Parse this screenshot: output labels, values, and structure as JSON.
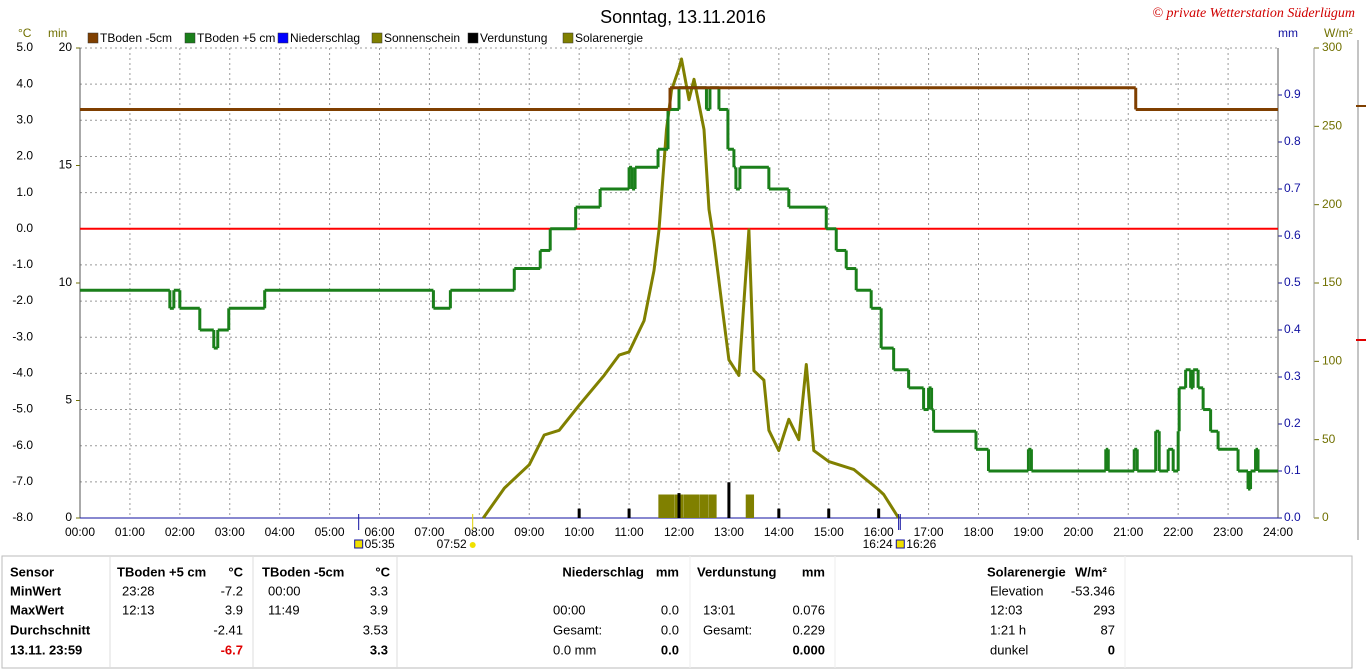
{
  "chart_data": {
    "type": "line",
    "title": "Sonntag, 13.11.2016",
    "credit": "© private Wetterstation Süderlügum",
    "units": {
      "y": "°C",
      "y2": "min",
      "y3": "mm",
      "y4": "W/m²"
    },
    "xlim": [
      0,
      24
    ],
    "xticks": [
      {
        "value": 0,
        "label": "00:00"
      },
      {
        "value": 1,
        "label": "01:00"
      },
      {
        "value": 2,
        "label": "02:00"
      },
      {
        "value": 3,
        "label": "03:00"
      },
      {
        "value": 4,
        "label": "04:00"
      },
      {
        "value": 5,
        "label": "05:00"
      },
      {
        "value": 6,
        "label": "06:00"
      },
      {
        "value": 7,
        "label": "07:00"
      },
      {
        "value": 8,
        "label": "08:00"
      },
      {
        "value": 9,
        "label": "09:00"
      },
      {
        "value": 10,
        "label": "10:00"
      },
      {
        "value": 11,
        "label": "11:00"
      },
      {
        "value": 12,
        "label": "12:00"
      },
      {
        "value": 13,
        "label": "13:00"
      },
      {
        "value": 14,
        "label": "14:00"
      },
      {
        "value": 15,
        "label": "15:00"
      },
      {
        "value": 16,
        "label": "16:00"
      },
      {
        "value": 17,
        "label": "17:00"
      },
      {
        "value": 18,
        "label": "18:00"
      },
      {
        "value": 19,
        "label": "19:00"
      },
      {
        "value": 20,
        "label": "20:00"
      },
      {
        "value": 21,
        "label": "21:00"
      },
      {
        "value": 22,
        "label": "22:00"
      },
      {
        "value": 23,
        "label": "23:00"
      },
      {
        "value": 24,
        "label": "24:00"
      }
    ],
    "ylim": [
      -8,
      5
    ],
    "yticks": [
      {
        "value": 5,
        "label": "5.0"
      },
      {
        "value": 4,
        "label": "4.0"
      },
      {
        "value": 3,
        "label": "3.0"
      },
      {
        "value": 2,
        "label": "2.0"
      },
      {
        "value": 1,
        "label": "1.0"
      },
      {
        "value": 0,
        "label": "0.0"
      },
      {
        "value": -1,
        "label": "-1.0"
      },
      {
        "value": -2,
        "label": "-2.0"
      },
      {
        "value": -3,
        "label": "-3.0"
      },
      {
        "value": -4,
        "label": "-4.0"
      },
      {
        "value": -5,
        "label": "-5.0"
      },
      {
        "value": -6,
        "label": "-6.0"
      },
      {
        "value": -7,
        "label": "-7.0"
      },
      {
        "value": -8,
        "label": "-8.0"
      }
    ],
    "y2lim": [
      0,
      20
    ],
    "y2ticks": [
      0,
      5,
      10,
      15,
      20
    ],
    "y3lim": [
      0,
      1
    ],
    "y3ticks": [
      {
        "value": 0,
        "label": "0.0"
      },
      0.1,
      0.2,
      0.3,
      0.4,
      0.5,
      0.6,
      0.7,
      0.8,
      0.9
    ],
    "y4lim": [
      0,
      300
    ],
    "y4ticks": [
      0,
      50,
      100,
      150,
      200,
      250,
      300
    ],
    "grid": true,
    "reference_line": {
      "value": 0,
      "color": "#ff0000"
    },
    "series": [
      {
        "name": "TBoden -5cm",
        "color": "#7f3f00",
        "type": "step",
        "axis": "y",
        "x": [
          0,
          11.82,
          21.15,
          24
        ],
        "values": [
          3.3,
          3.9,
          3.3,
          3.3
        ]
      },
      {
        "name": "TBoden +5 cm",
        "color": "#1a7f1a",
        "type": "step",
        "axis": "y",
        "x": [
          0,
          1.8,
          1.88,
          2.0,
          2.4,
          2.68,
          2.76,
          2.98,
          3.7,
          7.08,
          7.42,
          8.7,
          9.22,
          9.42,
          9.93,
          10.42,
          11.0,
          11.06,
          11.12,
          11.58,
          11.78,
          12.0,
          12.55,
          12.62,
          12.8,
          12.98,
          13.1,
          13.14,
          13.22,
          13.8,
          14.2,
          14.95,
          15.15,
          15.35,
          15.55,
          15.85,
          16.05,
          16.3,
          16.6,
          16.9,
          17.0,
          17.06,
          17.1,
          17.95,
          18.2,
          19.0,
          19.06,
          20.55,
          20.6,
          21.12,
          21.18,
          21.55,
          21.62,
          21.8,
          21.9,
          22.0,
          22.02,
          22.15,
          22.25,
          22.3,
          22.4,
          22.5,
          22.65,
          22.8,
          23.2,
          23.4,
          23.45,
          23.55,
          23.6,
          24
        ],
        "values": [
          -1.7,
          -2.2,
          -1.7,
          -2.2,
          -2.8,
          -3.3,
          -2.8,
          -2.2,
          -1.7,
          -2.2,
          -1.7,
          -1.1,
          -0.6,
          0,
          0.6,
          1.1,
          1.7,
          1.1,
          1.7,
          2.2,
          3.3,
          3.9,
          3.3,
          3.9,
          3.3,
          2.2,
          1.7,
          1.1,
          1.7,
          1.1,
          0.6,
          0,
          -0.6,
          -1.1,
          -1.7,
          -2.2,
          -3.3,
          -3.9,
          -4.4,
          -5.0,
          -4.4,
          -5.0,
          -5.6,
          -6.1,
          -6.7,
          -6.1,
          -6.7,
          -6.1,
          -6.7,
          -6.1,
          -6.7,
          -5.6,
          -6.7,
          -6.1,
          -6.7,
          -5.6,
          -4.4,
          -3.9,
          -4.4,
          -3.9,
          -4.4,
          -5.0,
          -5.6,
          -6.1,
          -6.7,
          -7.2,
          -6.7,
          -6.1,
          -6.7,
          -6.7
        ]
      },
      {
        "name": "Niederschlag",
        "color": "#0000ff",
        "type": "bar",
        "axis": "y3",
        "x": [],
        "values": []
      },
      {
        "name": "Sonnenschein",
        "color": "#808000",
        "type": "bar",
        "axis": "y2",
        "x": [
          11.67,
          11.83,
          12.0,
          12.17,
          12.33,
          12.5,
          12.67,
          13.42
        ],
        "values": [
          1,
          1,
          1,
          1,
          1,
          1,
          1,
          1
        ]
      },
      {
        "name": "Verdunstung",
        "color": "#000000",
        "type": "bar",
        "axis": "y3",
        "x": [
          10,
          11,
          12,
          13,
          14,
          15,
          16
        ],
        "values": [
          0.02,
          0.02,
          0.053,
          0.076,
          0.02,
          0.02,
          0.02
        ]
      },
      {
        "name": "Solarenergie",
        "color": "#808000",
        "type": "line",
        "axis": "y4",
        "x": [
          8.08,
          8.5,
          9.0,
          9.3,
          9.6,
          10.0,
          10.5,
          10.8,
          11.0,
          11.3,
          11.5,
          11.6,
          11.75,
          11.85,
          12.0,
          12.05,
          12.2,
          12.3,
          12.5,
          12.6,
          12.7,
          12.9,
          13.0,
          13.2,
          13.4,
          13.5,
          13.7,
          13.8,
          14.0,
          14.2,
          14.4,
          14.55,
          14.7,
          15.0,
          15.5,
          16.0,
          16.1,
          16.4
        ],
        "values": [
          0,
          19,
          34,
          53,
          56,
          72,
          91,
          104,
          106,
          126,
          158,
          184,
          248,
          273,
          287,
          293,
          267,
          280,
          248,
          197,
          177,
          126,
          101,
          91,
          184,
          94,
          88,
          56,
          43,
          63,
          50,
          98,
          43,
          36,
          31,
          18,
          15,
          0
        ]
      }
    ],
    "annotations": [
      {
        "x": 5.583,
        "label": "05:35"
      },
      {
        "x": 7.867,
        "label": "07:52"
      },
      {
        "x": 16.4,
        "label": "16:24"
      },
      {
        "x": 16.433,
        "label": "16:26"
      }
    ]
  },
  "table": {
    "header": [
      "Sensor",
      "TBoden +5 cm",
      "°C",
      "TBoden -5cm",
      "°C",
      "Niederschlag",
      "mm",
      "Verdunstung",
      "mm",
      "Solarenergie",
      "W/m²"
    ],
    "rows": [
      [
        "MinWert",
        "23:28",
        "-7.2",
        "00:00",
        "3.3",
        null,
        null,
        null,
        null,
        "Elevation",
        "-53.346"
      ],
      [
        "MaxWert",
        "12:13",
        "3.9",
        "11:49",
        "3.9",
        "00:00",
        "0.0",
        "13:01",
        "0.076",
        "12:03",
        "293"
      ],
      [
        "Durchschnitt",
        null,
        "-2.41",
        null,
        "3.53",
        "Gesamt:",
        "0.0",
        "Gesamt:",
        "0.229",
        "1:21 h",
        "87"
      ],
      [
        "13.11. 23:59",
        null,
        "-6.7",
        null,
        "3.3",
        "0.0 mm",
        "0.0",
        null,
        "0.000",
        "dunkel",
        "0"
      ]
    ]
  }
}
